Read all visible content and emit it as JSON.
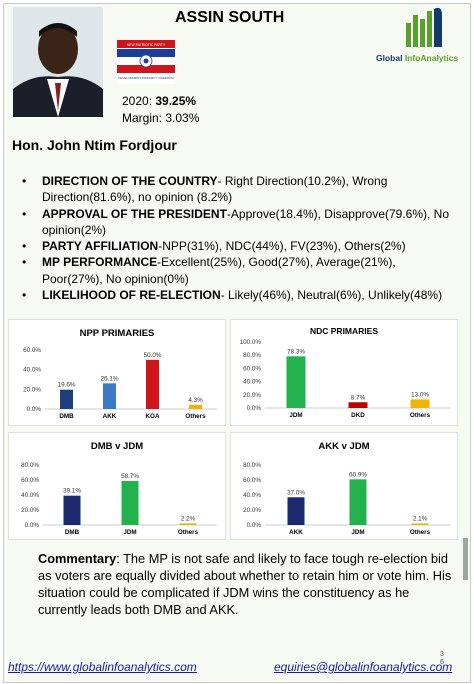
{
  "header": {
    "constituency": "ASSIN SOUTH",
    "result_label": "2020: ",
    "result_value": "39.25%",
    "margin_text": "Margin: 3.03%",
    "mp_name": "Hon. John Ntim Fordjour",
    "logo_text_1": "Global ",
    "logo_text_2": "InfoAnalytics",
    "flag_caption_top": "NEW PATRIOTIC PARTY",
    "flag_caption_bottom": "DEVELOPMENT INTEGRITY FREEDOM"
  },
  "bullets": [
    {
      "head": "DIRECTION OF THE COUNTRY",
      "text": "- Right Direction(10.2%), Wrong Direction(81.6%), no opinion  (8.2%)"
    },
    {
      "head": "APPROVAL OF THE PRESIDENT",
      "text": "-Approve(18.4%), Disapprove(79.6%), No opinion(2%)"
    },
    {
      "head": "PARTY AFFILIATION",
      "text": "-NPP(31%), NDC(44%), FV(23%), Others(2%)"
    },
    {
      "head": "MP PERFORMANCE",
      "text": "-Excellent(25%), Good(27%), Average(21%), Poor(27%), No opinion(0%)"
    },
    {
      "head": "LIKELIHOOD OF RE-ELECTION",
      "text": "- Likely(46%), Neutral(6%), Unlikely(48%)"
    }
  ],
  "chart_data": [
    {
      "type": "bar",
      "title": "NPP PRIMARIES",
      "categories": [
        "DMB",
        "AKK",
        "KOA",
        "Others"
      ],
      "values": [
        19.6,
        26.1,
        50.0,
        4.3
      ],
      "value_labels": [
        "19.6%",
        "26.1%",
        "50.0%",
        "4.3%"
      ],
      "colors": [
        "#1f3d7a",
        "#3c7ac8",
        "#d0141c",
        "#f0b400"
      ],
      "ylim": [
        0,
        60
      ],
      "yticks": [
        0,
        20,
        40,
        60
      ],
      "ytick_labels": [
        "0.0%",
        "20.0%",
        "40.0%",
        "60.0%"
      ],
      "grid": false
    },
    {
      "type": "bar",
      "title": "NDC PRIMARIES",
      "categories": [
        "JDM",
        "DKD",
        "Others"
      ],
      "values": [
        78.3,
        8.7,
        13.0
      ],
      "value_labels": [
        "78.3%",
        "8.7%",
        "13.0%"
      ],
      "colors": [
        "#22b14c",
        "#c00000",
        "#f0b400"
      ],
      "ylim": [
        0,
        100
      ],
      "yticks": [
        0,
        20,
        40,
        60,
        80,
        100
      ],
      "ytick_labels": [
        "0.0%",
        "20.0%",
        "40.0%",
        "60.0%",
        "80.0%",
        "100.0%"
      ],
      "grid": false
    },
    {
      "type": "bar",
      "title": "DMB v JDM",
      "categories": [
        "DMB",
        "JDM",
        "Others"
      ],
      "values": [
        39.1,
        58.7,
        2.2
      ],
      "value_labels": [
        "39.1%",
        "58.7%",
        "2.2%"
      ],
      "colors": [
        "#1a2a6c",
        "#22b14c",
        "#f0b400"
      ],
      "ylim": [
        0,
        80
      ],
      "yticks": [
        0,
        20,
        40,
        60,
        80
      ],
      "ytick_labels": [
        "0.0%",
        "20.0%",
        "40.0%",
        "60.0%",
        "80.0%"
      ],
      "grid": false
    },
    {
      "type": "bar",
      "title": "AKK v JDM",
      "categories": [
        "AKK",
        "JDM",
        "Others"
      ],
      "values": [
        37.0,
        60.9,
        2.1
      ],
      "value_labels": [
        "37.0%",
        "60.9%",
        "2.1%"
      ],
      "colors": [
        "#1a2a6c",
        "#22b14c",
        "#f0b400"
      ],
      "ylim": [
        0,
        80
      ],
      "yticks": [
        0,
        20,
        40,
        60,
        80
      ],
      "ytick_labels": [
        "0.0%",
        "20.0%",
        "40.0%",
        "60.0%",
        "80.0%"
      ],
      "grid": false
    }
  ],
  "commentary": {
    "label": "Commentary",
    "text": ": The MP is not safe and likely to face tough re-election bid as voters are equally divided about whether to retain him or vote him. His situation could be complicated if JDM wins the constituency as he currently leads both DMB and AKK."
  },
  "footer": {
    "website": "https://www.globalinfoanalytics.com",
    "email": "equiries@globalinfoanalytics.com",
    "page_top": "3",
    "page_bottom": "6"
  },
  "colors": {
    "brand_navy": "#123a6b",
    "brand_green": "#5aa02c",
    "link": "#1a1aa6"
  }
}
